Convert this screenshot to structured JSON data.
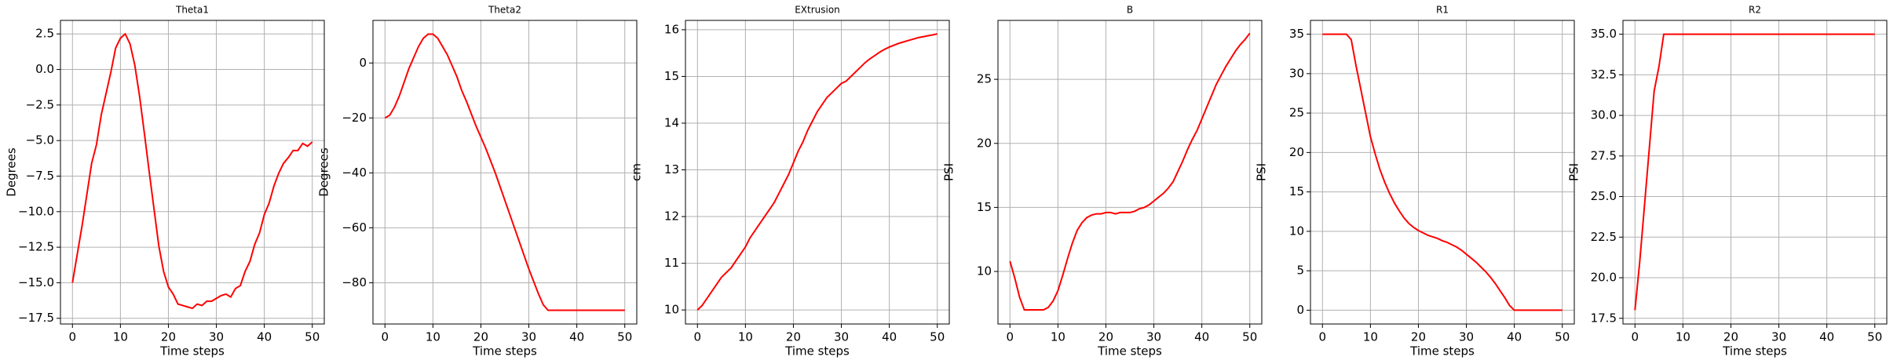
{
  "chart_data": [
    {
      "type": "line",
      "title": "Theta1",
      "x_label": "Time steps",
      "y_label": "Degrees",
      "grid": true,
      "x": [
        0,
        1,
        2,
        3,
        4,
        5,
        6,
        7,
        8,
        9,
        10,
        11,
        12,
        13,
        14,
        15,
        16,
        17,
        18,
        19,
        20,
        21,
        22,
        23,
        24,
        25,
        26,
        27,
        28,
        29,
        30,
        31,
        32,
        33,
        34,
        35,
        36,
        37,
        38,
        39,
        40,
        41,
        42,
        43,
        44,
        45,
        46,
        47,
        48,
        49,
        50
      ],
      "series": [
        {
          "color": "#ff0000",
          "values": [
            -15,
            -13,
            -11,
            -8.8,
            -6.6,
            -5.3,
            -3.2,
            -1.7,
            -0.2,
            1.5,
            2.2,
            2.5,
            1.8,
            0.3,
            -1.9,
            -4.5,
            -7.2,
            -9.8,
            -12.4,
            -14.2,
            -15.3,
            -15.8,
            -16.5,
            -16.6,
            -16.7,
            -16.8,
            -16.5,
            -16.6,
            -16.3,
            -16.3,
            -16.1,
            -15.9,
            -15.8,
            -16,
            -15.4,
            -15.2,
            -14.2,
            -13.5,
            -12.3,
            -11.5,
            -10.2,
            -9.4,
            -8.2,
            -7.3,
            -6.6,
            -6.2,
            -5.7,
            -5.7,
            -5.2,
            -5.4,
            -5.1
          ]
        }
      ],
      "xlim": [
        -2.5,
        52.5
      ],
      "xticks": [
        0,
        10,
        20,
        30,
        40,
        50
      ],
      "ylim": [
        -17.9,
        3.45
      ],
      "yticks": [
        {
          "value": -17.5,
          "label": "−17.5"
        },
        {
          "value": -15,
          "label": "−15.0"
        },
        {
          "value": -12.5,
          "label": "−12.5"
        },
        {
          "value": -10,
          "label": "−10.0"
        },
        {
          "value": -7.5,
          "label": "−7.5"
        },
        {
          "value": -5,
          "label": "−5.0"
        },
        {
          "value": -2.5,
          "label": "−2.5"
        },
        {
          "value": 0,
          "label": "0.0"
        },
        2.5
      ]
    },
    {
      "type": "line",
      "title": "Theta2",
      "x_label": "Time steps",
      "y_label": "Degrees",
      "grid": true,
      "x": [
        0,
        1,
        2,
        3,
        4,
        5,
        6,
        7,
        8,
        9,
        10,
        11,
        12,
        13,
        14,
        15,
        16,
        17,
        18,
        19,
        20,
        21,
        22,
        23,
        24,
        25,
        26,
        27,
        28,
        29,
        30,
        31,
        32,
        33,
        34,
        35,
        36,
        37,
        38,
        39,
        40,
        41,
        42,
        43,
        44,
        45,
        46,
        47,
        48,
        49,
        50
      ],
      "series": [
        {
          "color": "#ff0000",
          "values": [
            -20,
            -19,
            -16,
            -12,
            -7,
            -2,
            2,
            6,
            9,
            10.5,
            10.5,
            9,
            6,
            3,
            -1,
            -5,
            -10,
            -14,
            -18.5,
            -23,
            -27,
            -31,
            -35.5,
            -40,
            -45,
            -50,
            -55,
            -60,
            -65,
            -70,
            -75,
            -79.5,
            -84,
            -88,
            -90,
            -90,
            -90,
            -90,
            -90,
            -90,
            -90,
            -90,
            -90,
            -90,
            -90,
            -90,
            -90,
            -90,
            -90,
            -90,
            -90
          ]
        }
      ],
      "xlim": [
        -2.5,
        52.5
      ],
      "xticks": [
        0,
        10,
        20,
        30,
        40,
        50
      ],
      "ylim": [
        -95,
        15.5
      ],
      "yticks": [
        {
          "value": -80,
          "label": "−80"
        },
        {
          "value": -60,
          "label": "−60"
        },
        {
          "value": -40,
          "label": "−40"
        },
        {
          "value": -20,
          "label": "−20"
        },
        0
      ]
    },
    {
      "type": "line",
      "title": "EXtrusion",
      "x_label": "Time steps",
      "y_label": "cm",
      "grid": true,
      "x": [
        0,
        1,
        2,
        3,
        4,
        5,
        6,
        7,
        8,
        9,
        10,
        11,
        12,
        13,
        14,
        15,
        16,
        17,
        18,
        19,
        20,
        21,
        22,
        23,
        24,
        25,
        26,
        27,
        28,
        29,
        30,
        31,
        32,
        33,
        34,
        35,
        36,
        37,
        38,
        39,
        40,
        41,
        42,
        43,
        44,
        45,
        46,
        47,
        48,
        49,
        50
      ],
      "series": [
        {
          "color": "#ff0000",
          "values": [
            10,
            10.1,
            10.25,
            10.4,
            10.55,
            10.7,
            10.8,
            10.9,
            11.05,
            11.2,
            11.35,
            11.55,
            11.7,
            11.85,
            12,
            12.15,
            12.3,
            12.5,
            12.7,
            12.9,
            13.15,
            13.4,
            13.6,
            13.85,
            14.05,
            14.25,
            14.4,
            14.55,
            14.65,
            14.75,
            14.85,
            14.9,
            15,
            15.1,
            15.2,
            15.3,
            15.38,
            15.45,
            15.52,
            15.58,
            15.63,
            15.67,
            15.71,
            15.74,
            15.77,
            15.8,
            15.83,
            15.85,
            15.87,
            15.89,
            15.91
          ]
        }
      ],
      "xlim": [
        -2.5,
        52.5
      ],
      "xticks": [
        0,
        10,
        20,
        30,
        40,
        50
      ],
      "ylim": [
        9.7,
        16.2
      ],
      "yticks": [
        10,
        11,
        12,
        13,
        14,
        15,
        16
      ]
    },
    {
      "type": "line",
      "title": "B",
      "x_label": "Time steps",
      "y_label": "PSI",
      "grid": true,
      "x": [
        0,
        1,
        2,
        3,
        4,
        5,
        6,
        7,
        8,
        9,
        10,
        11,
        12,
        13,
        14,
        15,
        16,
        17,
        18,
        19,
        20,
        21,
        22,
        23,
        24,
        25,
        26,
        27,
        28,
        29,
        30,
        31,
        32,
        33,
        34,
        35,
        36,
        37,
        38,
        39,
        40,
        41,
        42,
        43,
        44,
        45,
        46,
        47,
        48,
        49,
        50
      ],
      "series": [
        {
          "color": "#ff0000",
          "values": [
            10.8,
            9.5,
            8,
            7,
            7,
            7,
            7,
            7,
            7.2,
            7.7,
            8.5,
            9.7,
            11,
            12.2,
            13.2,
            13.8,
            14.2,
            14.4,
            14.5,
            14.5,
            14.6,
            14.6,
            14.5,
            14.6,
            14.6,
            14.6,
            14.7,
            14.9,
            15,
            15.2,
            15.5,
            15.8,
            16.1,
            16.5,
            17,
            17.8,
            18.6,
            19.5,
            20.3,
            21,
            21.9,
            22.8,
            23.7,
            24.6,
            25.3,
            26,
            26.6,
            27.2,
            27.7,
            28.1,
            28.6
          ]
        }
      ],
      "xlim": [
        -2.5,
        52.5
      ],
      "xticks": [
        0,
        10,
        20,
        30,
        40,
        50
      ],
      "ylim": [
        5.9,
        29.6
      ],
      "yticks": [
        10,
        15,
        20,
        25
      ]
    },
    {
      "type": "line",
      "title": "R1",
      "x_label": "Time steps",
      "y_label": "PSI",
      "grid": true,
      "x": [
        0,
        1,
        2,
        3,
        4,
        5,
        6,
        7,
        8,
        9,
        10,
        11,
        12,
        13,
        14,
        15,
        16,
        17,
        18,
        19,
        20,
        21,
        22,
        23,
        24,
        25,
        26,
        27,
        28,
        29,
        30,
        31,
        32,
        33,
        34,
        35,
        36,
        37,
        38,
        39,
        40,
        41,
        42,
        43,
        44,
        45,
        46,
        47,
        48,
        49,
        50
      ],
      "series": [
        {
          "color": "#ff0000",
          "values": [
            35,
            35,
            35,
            35,
            35,
            35,
            34.3,
            31,
            28,
            25,
            22,
            19.8,
            17.8,
            16.2,
            14.8,
            13.6,
            12.6,
            11.7,
            11,
            10.5,
            10.1,
            9.8,
            9.5,
            9.3,
            9.1,
            8.8,
            8.6,
            8.3,
            8,
            7.6,
            7.1,
            6.6,
            6.1,
            5.5,
            4.9,
            4.2,
            3.4,
            2.5,
            1.6,
            0.6,
            0,
            0,
            0,
            0,
            0,
            0,
            0,
            0,
            0,
            0,
            0
          ]
        }
      ],
      "xlim": [
        -2.5,
        52.5
      ],
      "xticks": [
        0,
        10,
        20,
        30,
        40,
        50
      ],
      "ylim": [
        -1.75,
        36.75
      ],
      "yticks": [
        0,
        5,
        10,
        15,
        20,
        25,
        30,
        35
      ]
    },
    {
      "type": "line",
      "title": "R2",
      "x_label": "Time steps",
      "y_label": "PSI",
      "grid": true,
      "x": [
        0,
        1,
        2,
        3,
        4,
        5,
        6,
        7,
        8,
        9,
        10,
        11,
        12,
        13,
        14,
        15,
        16,
        17,
        18,
        19,
        20,
        21,
        22,
        23,
        24,
        25,
        26,
        27,
        28,
        29,
        30,
        31,
        32,
        33,
        34,
        35,
        36,
        37,
        38,
        39,
        40,
        41,
        42,
        43,
        44,
        45,
        46,
        47,
        48,
        49,
        50
      ],
      "series": [
        {
          "color": "#ff0000",
          "values": [
            18,
            21,
            24.5,
            28,
            31.5,
            33,
            35,
            35,
            35,
            35,
            35,
            35,
            35,
            35,
            35,
            35,
            35,
            35,
            35,
            35,
            35,
            35,
            35,
            35,
            35,
            35,
            35,
            35,
            35,
            35,
            35,
            35,
            35,
            35,
            35,
            35,
            35,
            35,
            35,
            35,
            35,
            35,
            35,
            35,
            35,
            35,
            35,
            35,
            35,
            35,
            35
          ]
        }
      ],
      "xlim": [
        -2.5,
        52.5
      ],
      "xticks": [
        0,
        10,
        20,
        30,
        40,
        50
      ],
      "ylim": [
        17.15,
        35.85
      ],
      "yticks": [
        17.5,
        {
          "value": 20,
          "label": "20.0"
        },
        22.5,
        {
          "value": 25,
          "label": "25.0"
        },
        27.5,
        {
          "value": 30,
          "label": "30.0"
        },
        32.5,
        {
          "value": 35,
          "label": "35.0"
        }
      ]
    }
  ]
}
